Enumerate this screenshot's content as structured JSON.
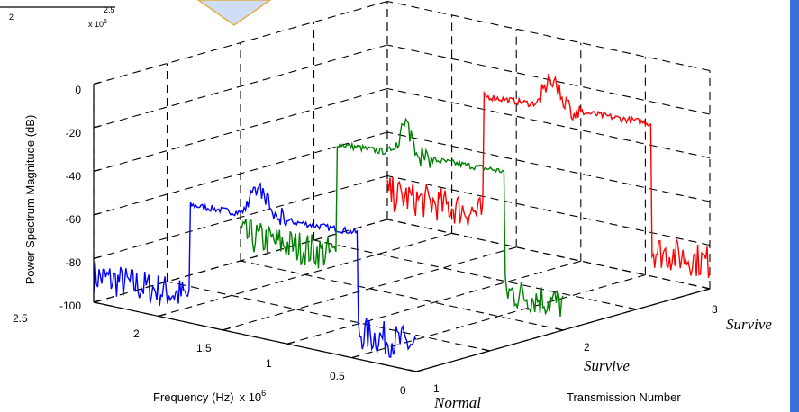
{
  "chart_data": {
    "type": "line",
    "title": "",
    "zlabel": "Power Spectrum Magnitude (dB)",
    "xlabel": "Frequency (Hz)",
    "xlabel_exp": "x 10",
    "xlabel_exp_power": "6",
    "ylabel": "Transmission Number",
    "zlim": [
      -100,
      0
    ],
    "xlim": [
      0,
      2.5
    ],
    "ylim": [
      1,
      3
    ],
    "z_ticks": [
      "0",
      "-20",
      "-40",
      "-60",
      "-80",
      "-100"
    ],
    "x_ticks": [
      "2.5",
      "2",
      "1.5",
      "1",
      "0.5",
      "0"
    ],
    "y_ticks": [
      "1",
      "2",
      "3"
    ],
    "annotations": [
      "Normal",
      "Survive",
      "Survive"
    ],
    "grid": true,
    "series": [
      {
        "color": "#0000ff",
        "transmission": 1,
        "noise_floor": -88,
        "plateau": -42,
        "band": [
          0.45,
          1.75
        ]
      },
      {
        "color": "#008000",
        "transmission": 2,
        "noise_floor": -88,
        "plateau": -33,
        "band": [
          0.45,
          1.75
        ]
      },
      {
        "color": "#ff0000",
        "transmission": 3,
        "noise_floor": -88,
        "plateau": -30,
        "band": [
          0.45,
          1.75
        ]
      }
    ],
    "inset": {
      "tick_left": "2",
      "tick_right": "2.5",
      "exp": "x 10",
      "exp_power": "6"
    }
  },
  "colors": {
    "arrow_fill": "#d0ddf7",
    "arrow_stroke": "#e0b040",
    "right_edge": "#3a6fd8"
  }
}
